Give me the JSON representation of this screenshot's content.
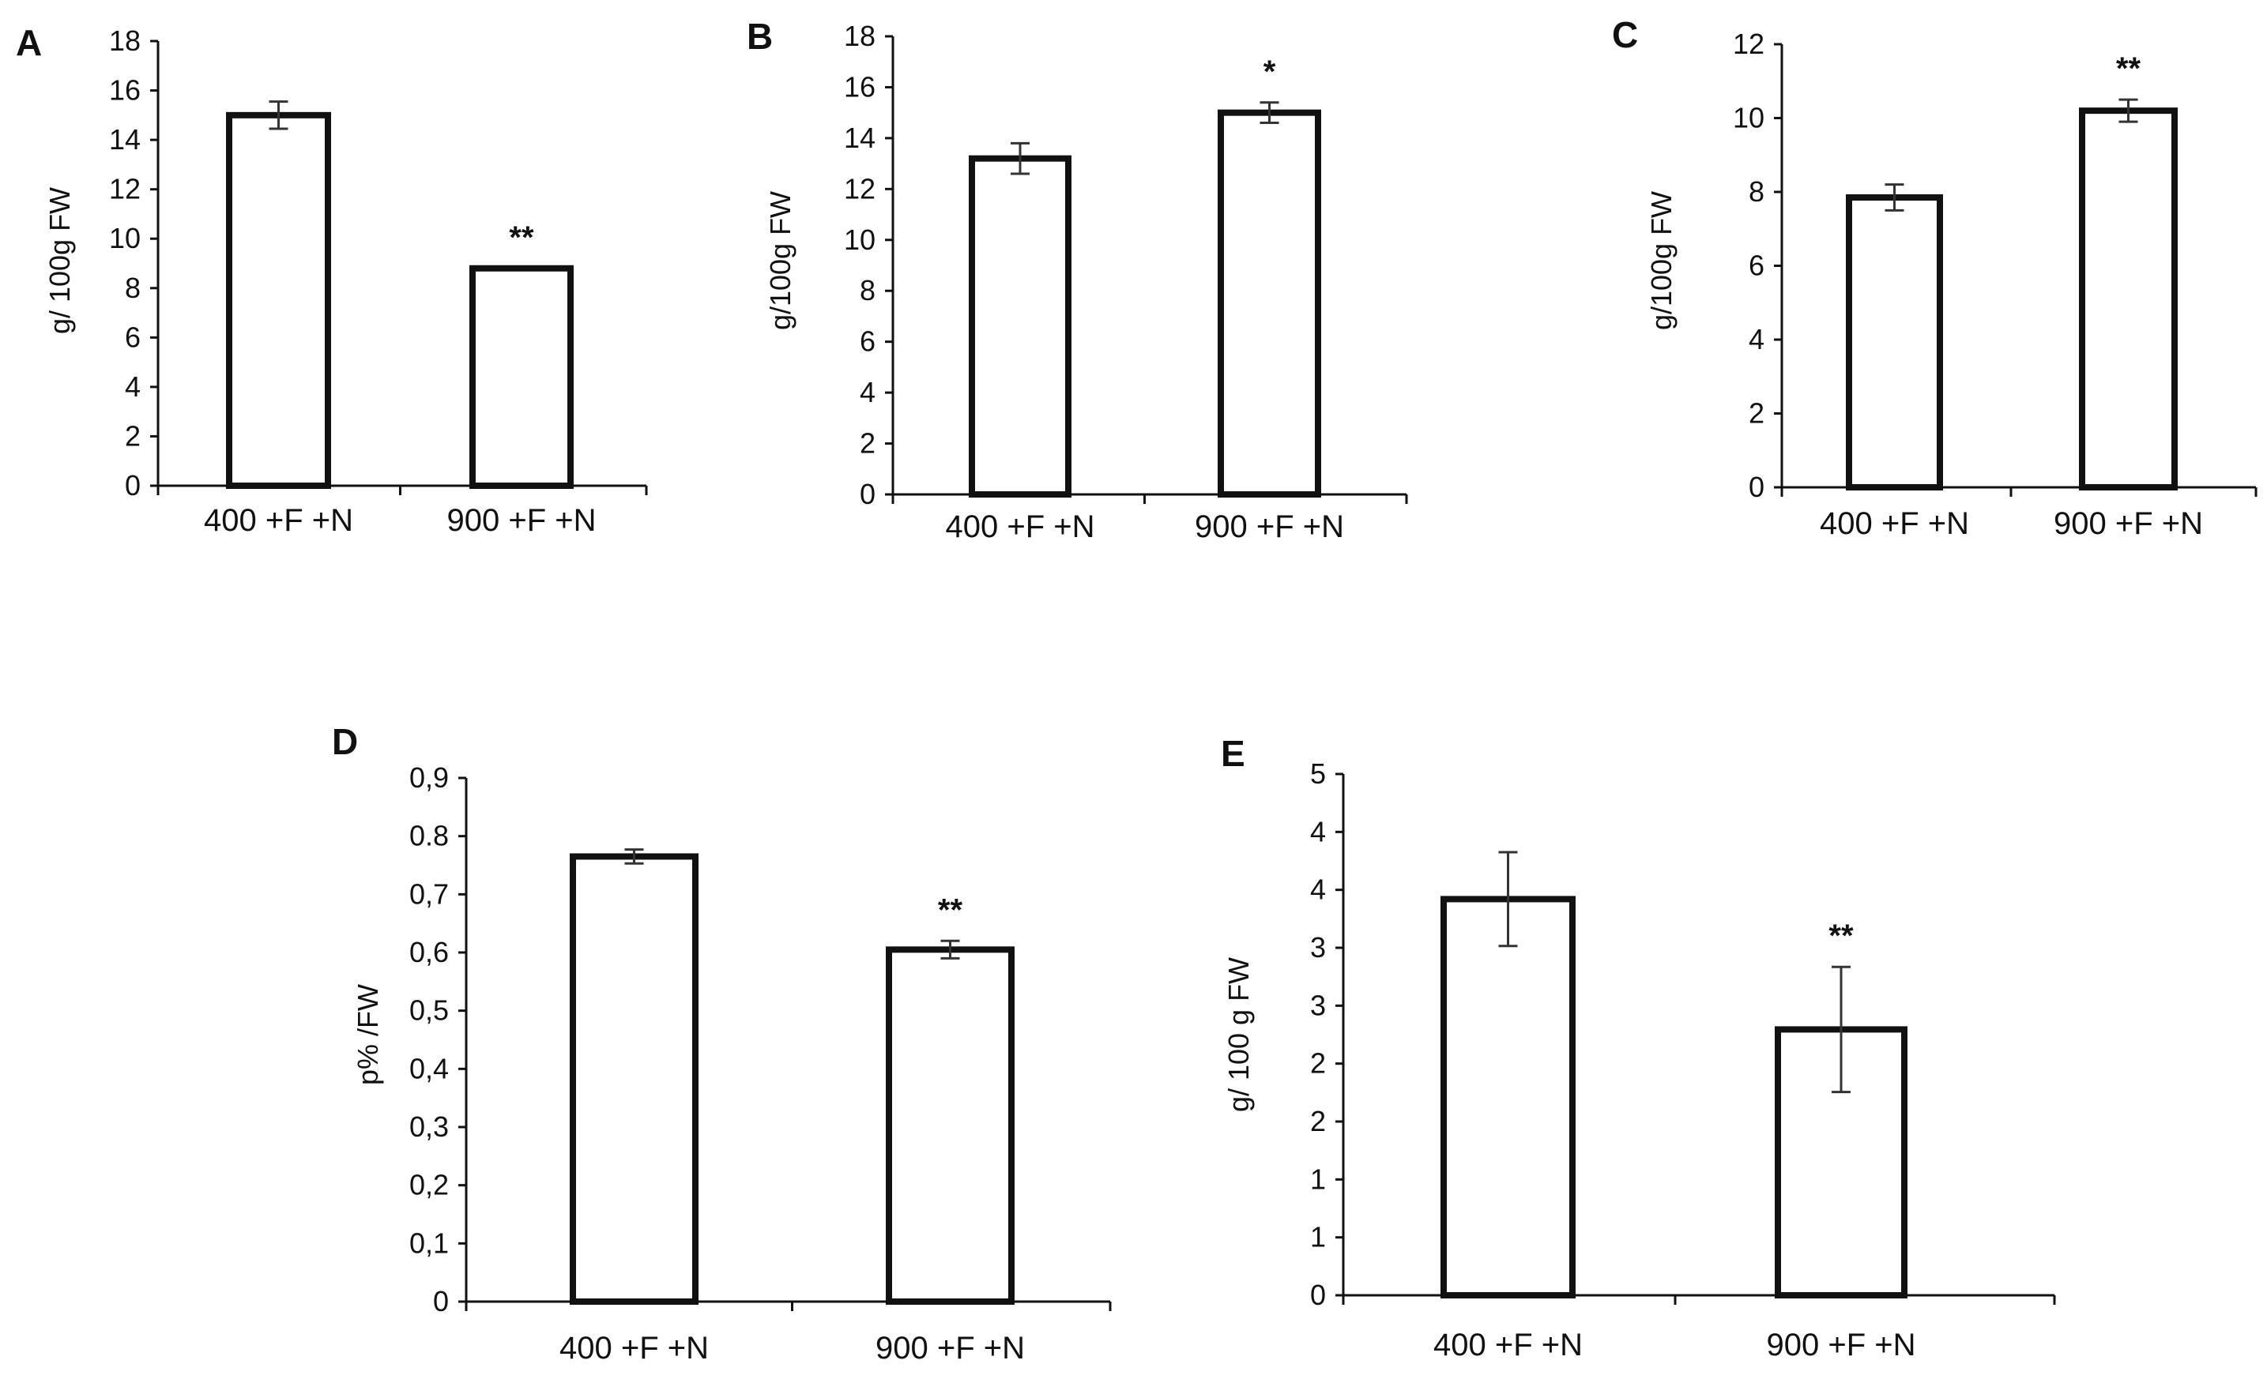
{
  "figure": {
    "description_visible": false
  },
  "chart_data": [
    {
      "panel_label": "A",
      "type": "bar",
      "categories": [
        "400 +F +N",
        "900 +F +N"
      ],
      "values": [
        15.0,
        8.8
      ],
      "errors": [
        0.55,
        0
      ],
      "significance": [
        "",
        "**"
      ],
      "ylabel": "g/ 100g FW",
      "ylim": [
        0,
        18
      ],
      "yticks": [
        "0",
        "2",
        "4",
        "6",
        "8",
        "10",
        "12",
        "14",
        "16",
        "18"
      ]
    },
    {
      "panel_label": "B",
      "type": "bar",
      "categories": [
        "400 +F +N",
        "900 +F +N"
      ],
      "values": [
        13.2,
        15.0
      ],
      "errors": [
        0.6,
        0.4
      ],
      "significance": [
        "",
        "*"
      ],
      "ylabel": "g/100g FW",
      "ylim": [
        0,
        18
      ],
      "yticks": [
        "0",
        "2",
        "4",
        "6",
        "8",
        "10",
        "12",
        "14",
        "16",
        "18"
      ]
    },
    {
      "panel_label": "C",
      "type": "bar",
      "categories": [
        "400 +F +N",
        "900 +F +N"
      ],
      "values": [
        7.85,
        10.2
      ],
      "errors": [
        0.35,
        0.3
      ],
      "significance": [
        "",
        "**"
      ],
      "ylabel": "g/100g FW",
      "ylim": [
        0,
        12
      ],
      "yticks": [
        "0",
        "2",
        "4",
        "6",
        "8",
        "10",
        "12"
      ]
    },
    {
      "panel_label": "D",
      "type": "bar",
      "categories": [
        "400 +F +N",
        "900 +F +N"
      ],
      "values": [
        0.765,
        0.605
      ],
      "errors": [
        0.012,
        0.015
      ],
      "significance": [
        "",
        "**"
      ],
      "ylabel": "p% /FW",
      "ylim": [
        0,
        0.9
      ],
      "yticks": [
        "0",
        "0,1",
        "0,2",
        "0,3",
        "0,4",
        "0,5",
        "0,6",
        "0,7",
        "0.8",
        "0,9"
      ]
    },
    {
      "panel_label": "E",
      "type": "bar",
      "categories": [
        "400 +F +N",
        "900 +F +N"
      ],
      "values": [
        3.8,
        2.55
      ],
      "errors": [
        0.45,
        0.6
      ],
      "significance": [
        "",
        "**"
      ],
      "ylabel": "g/ 100 g FW",
      "ylim": [
        0,
        5
      ],
      "yticks": [
        "0",
        "1",
        "1",
        "2",
        "2",
        "3",
        "3",
        "4",
        "4",
        "5"
      ]
    }
  ]
}
